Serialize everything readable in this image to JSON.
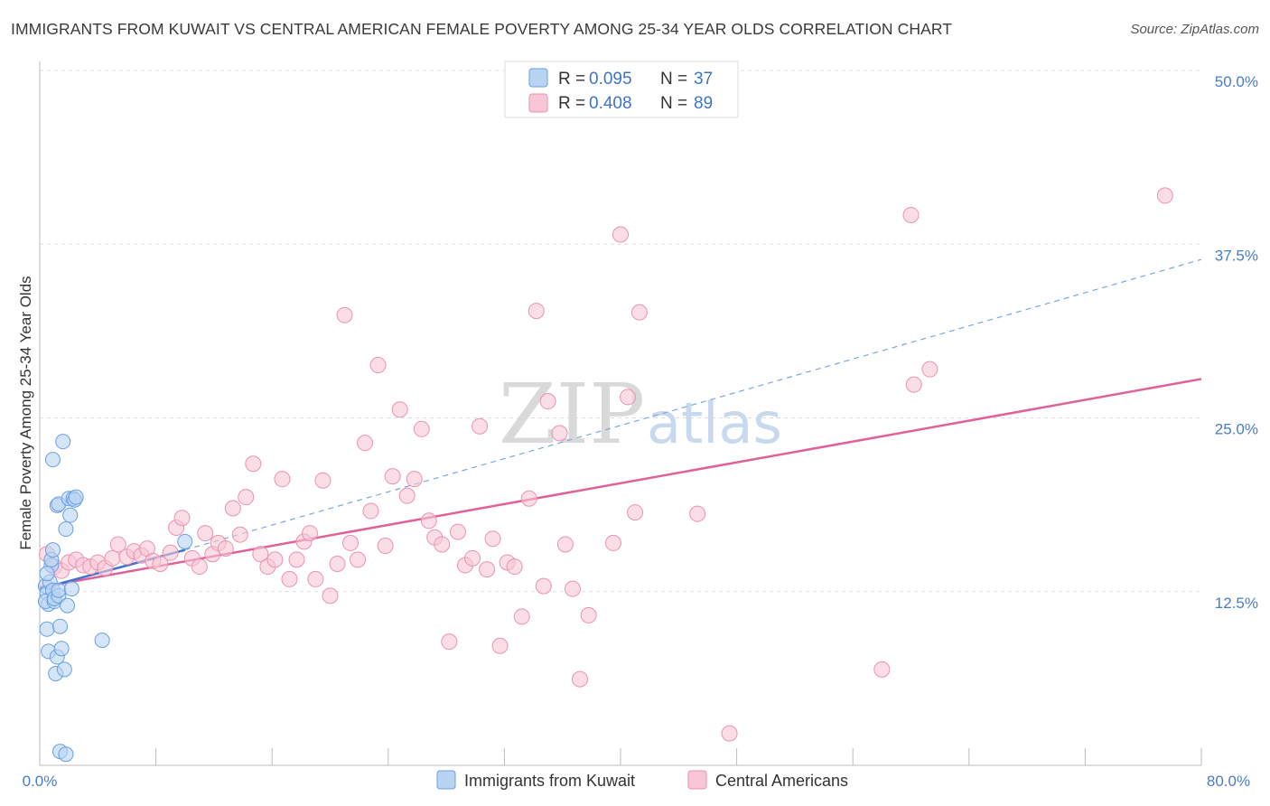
{
  "header": {
    "title": "IMMIGRANTS FROM KUWAIT VS CENTRAL AMERICAN FEMALE POVERTY AMONG 25-34 YEAR OLDS CORRELATION CHART",
    "source": "Source: ZipAtlas.com"
  },
  "watermark": {
    "zip": "ZIP",
    "atlas": "atlas"
  },
  "colors": {
    "kuwait_fill": "#b9d3f3",
    "kuwait_stroke": "#6a9fe0",
    "kuwait_line": "#3f73cf",
    "central_fill": "#f8c6d6",
    "central_stroke": "#ea93b0",
    "central_line": "#e0609a",
    "grid": "#dddddd",
    "tick_text": "#4a7cc9"
  },
  "legend": {
    "rows": [
      {
        "r_label": "R =",
        "r_value": "0.095",
        "n_label": "N =",
        "n_value": "37"
      },
      {
        "r_label": "R =",
        "r_value": "0.408",
        "n_label": "N =",
        "n_value": "89"
      }
    ]
  },
  "chart_data": {
    "type": "scatter",
    "title": "IMMIGRANTS FROM KUWAIT VS CENTRAL AMERICAN FEMALE POVERTY AMONG 25-34 YEAR OLDS CORRELATION CHART",
    "xlabel": "",
    "ylabel": "Female Poverty Among 25-34 Year Olds",
    "xlim": [
      0,
      80
    ],
    "ylim": [
      0,
      50
    ],
    "x_tick_labels": [
      "0.0%",
      "80.0%"
    ],
    "y_ticks": [
      12.5,
      25.0,
      37.5,
      50.0
    ],
    "y_tick_labels": [
      "12.5%",
      "25.0%",
      "37.5%",
      "50.0%"
    ],
    "grid": true,
    "legend_position": "top-center",
    "series": [
      {
        "name": "Immigrants from Kuwait",
        "color": "#6a9fe0",
        "points": [
          [
            0.4,
            12.9
          ],
          [
            0.5,
            12.4
          ],
          [
            0.6,
            11.6
          ],
          [
            0.7,
            13.2
          ],
          [
            0.8,
            14.4
          ],
          [
            0.8,
            14.8
          ],
          [
            0.9,
            15.5
          ],
          [
            0.4,
            11.8
          ],
          [
            0.5,
            9.8
          ],
          [
            0.6,
            8.2
          ],
          [
            0.9,
            12.6
          ],
          [
            1.0,
            11.8
          ],
          [
            1.0,
            12.0
          ],
          [
            1.1,
            6.6
          ],
          [
            1.2,
            7.8
          ],
          [
            1.2,
            18.7
          ],
          [
            1.3,
            18.8
          ],
          [
            1.3,
            12.2
          ],
          [
            1.3,
            12.6
          ],
          [
            1.4,
            10.0
          ],
          [
            1.4,
            1.0
          ],
          [
            1.5,
            8.4
          ],
          [
            1.6,
            23.3
          ],
          [
            1.7,
            6.9
          ],
          [
            1.8,
            17.0
          ],
          [
            1.8,
            0.8
          ],
          [
            1.9,
            11.5
          ],
          [
            2.0,
            19.2
          ],
          [
            2.1,
            18.0
          ],
          [
            2.3,
            19.2
          ],
          [
            2.4,
            19.1
          ],
          [
            2.5,
            19.3
          ],
          [
            2.2,
            12.7
          ],
          [
            4.3,
            9.0
          ],
          [
            0.9,
            22.0
          ],
          [
            10.0,
            16.1
          ],
          [
            0.5,
            13.8
          ]
        ],
        "trend": {
          "x": [
            0,
            10
          ],
          "y": [
            12.7,
            15.5
          ]
        },
        "trend_extended": {
          "x": [
            10,
            80
          ],
          "y": [
            15.5,
            36.4
          ]
        }
      },
      {
        "name": "Central Americans",
        "color": "#ea93b0",
        "points": [
          [
            0.5,
            15.2
          ],
          [
            1.0,
            14.3
          ],
          [
            1.5,
            14.0
          ],
          [
            2.0,
            14.6
          ],
          [
            2.5,
            14.8
          ],
          [
            3.0,
            14.4
          ],
          [
            3.5,
            14.3
          ],
          [
            4.0,
            14.6
          ],
          [
            4.5,
            14.2
          ],
          [
            5.0,
            14.9
          ],
          [
            5.4,
            15.9
          ],
          [
            6.0,
            15.0
          ],
          [
            6.5,
            15.4
          ],
          [
            7.0,
            15.1
          ],
          [
            7.4,
            15.6
          ],
          [
            7.8,
            14.7
          ],
          [
            8.3,
            14.5
          ],
          [
            9.0,
            15.3
          ],
          [
            9.4,
            17.1
          ],
          [
            9.8,
            17.8
          ],
          [
            10.5,
            14.9
          ],
          [
            11.0,
            14.3
          ],
          [
            11.4,
            16.7
          ],
          [
            11.9,
            15.2
          ],
          [
            12.3,
            16.0
          ],
          [
            12.8,
            15.6
          ],
          [
            13.3,
            18.5
          ],
          [
            13.8,
            16.6
          ],
          [
            14.2,
            19.3
          ],
          [
            14.7,
            21.7
          ],
          [
            15.2,
            15.2
          ],
          [
            15.7,
            14.3
          ],
          [
            16.2,
            14.8
          ],
          [
            16.7,
            20.6
          ],
          [
            17.2,
            13.4
          ],
          [
            17.7,
            14.8
          ],
          [
            18.2,
            16.1
          ],
          [
            18.6,
            16.7
          ],
          [
            19.0,
            13.4
          ],
          [
            19.5,
            20.5
          ],
          [
            20.0,
            12.2
          ],
          [
            20.5,
            14.5
          ],
          [
            21.0,
            32.4
          ],
          [
            21.4,
            16.0
          ],
          [
            21.9,
            14.8
          ],
          [
            22.4,
            23.2
          ],
          [
            22.8,
            18.3
          ],
          [
            23.3,
            28.8
          ],
          [
            23.8,
            15.8
          ],
          [
            24.3,
            20.8
          ],
          [
            24.8,
            25.6
          ],
          [
            25.3,
            19.4
          ],
          [
            25.8,
            20.6
          ],
          [
            26.3,
            24.2
          ],
          [
            26.8,
            17.6
          ],
          [
            27.2,
            16.4
          ],
          [
            27.7,
            15.9
          ],
          [
            28.2,
            8.9
          ],
          [
            28.8,
            16.8
          ],
          [
            29.3,
            14.4
          ],
          [
            29.8,
            14.9
          ],
          [
            30.3,
            24.4
          ],
          [
            30.8,
            14.1
          ],
          [
            31.2,
            16.3
          ],
          [
            31.7,
            8.6
          ],
          [
            32.2,
            14.6
          ],
          [
            32.7,
            14.3
          ],
          [
            33.2,
            10.7
          ],
          [
            33.7,
            19.2
          ],
          [
            34.2,
            32.7
          ],
          [
            34.7,
            12.9
          ],
          [
            35.0,
            26.2
          ],
          [
            35.8,
            23.9
          ],
          [
            36.2,
            15.9
          ],
          [
            36.7,
            12.7
          ],
          [
            37.2,
            6.2
          ],
          [
            37.8,
            10.8
          ],
          [
            39.5,
            16.0
          ],
          [
            40.0,
            38.2
          ],
          [
            41.0,
            18.2
          ],
          [
            41.3,
            32.6
          ],
          [
            40.5,
            26.5
          ],
          [
            45.3,
            18.1
          ],
          [
            47.5,
            2.3
          ],
          [
            58.0,
            6.9
          ],
          [
            60.0,
            39.6
          ],
          [
            60.2,
            27.4
          ],
          [
            61.3,
            28.5
          ],
          [
            77.5,
            41.0
          ]
        ],
        "trend": {
          "x": [
            0,
            80
          ],
          "y": [
            12.8,
            27.8
          ]
        }
      }
    ]
  }
}
